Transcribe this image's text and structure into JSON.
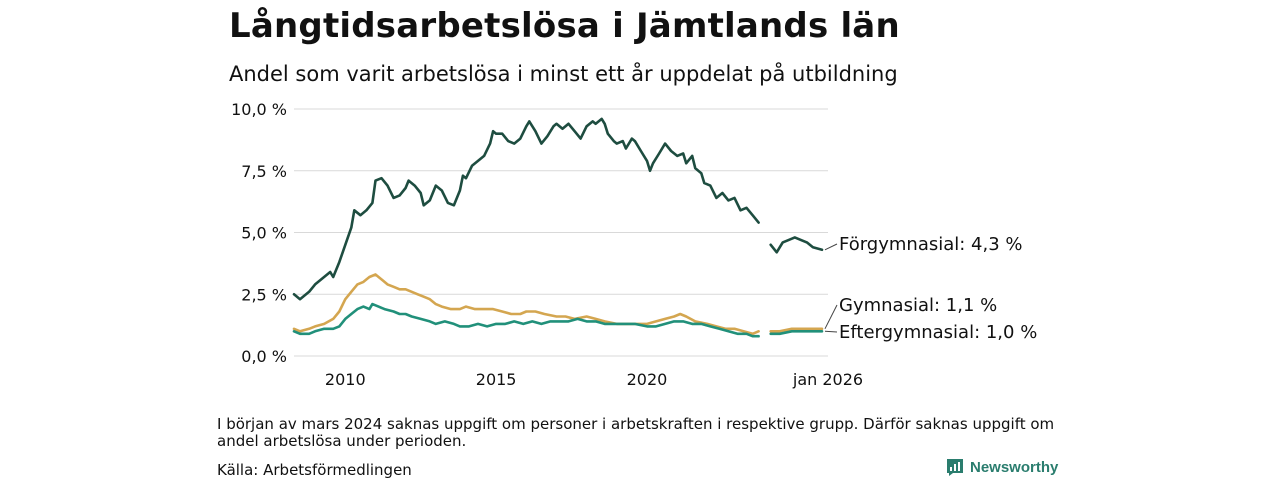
{
  "title": "Långtidsarbetslösa i Jämtlands län",
  "subtitle": "Andel som varit arbetslösa i minst ett år uppdelat på utbildning",
  "note": "I början av mars 2024 saknas uppgift om personer i arbetskraften i respektive grupp. Därför saknas uppgift om andel arbetslösa under perioden.",
  "source": "Källa: Arbetsförmedlingen",
  "brand": "Newsworthy",
  "colors": {
    "forgymnasial": "#1e4d40",
    "gymnasial": "#d4a650",
    "eftergymnasial": "#21907a",
    "grid": "#d9d9d9",
    "brand": "#2a7d6e"
  },
  "chart_data": {
    "type": "line",
    "x_range": [
      2008.3,
      2026.0
    ],
    "ylim": [
      0,
      10
    ],
    "y_ticks": [
      0,
      2.5,
      5,
      7.5,
      10
    ],
    "y_tick_labels": [
      "0,0 %",
      "2,5 %",
      "5,0 %",
      "7,5 %",
      "10,0 %"
    ],
    "x_ticks": [
      2010,
      2015,
      2020,
      2026
    ],
    "x_tick_labels": [
      "2010",
      "2015",
      "2020",
      "jan 2026"
    ],
    "grid": true,
    "gap": [
      2023.7,
      2024.1
    ],
    "series": [
      {
        "name": "Förgymnasial",
        "label": "Förgymnasial: 4,3 %",
        "color": "#1e4d40",
        "points": [
          [
            2008.3,
            2.5
          ],
          [
            2008.5,
            2.3
          ],
          [
            2008.8,
            2.6
          ],
          [
            2009.0,
            2.9
          ],
          [
            2009.2,
            3.1
          ],
          [
            2009.5,
            3.4
          ],
          [
            2009.6,
            3.2
          ],
          [
            2009.8,
            3.8
          ],
          [
            2010.0,
            4.5
          ],
          [
            2010.2,
            5.2
          ],
          [
            2010.3,
            5.9
          ],
          [
            2010.5,
            5.7
          ],
          [
            2010.7,
            5.9
          ],
          [
            2010.9,
            6.2
          ],
          [
            2011.0,
            7.1
          ],
          [
            2011.2,
            7.2
          ],
          [
            2011.4,
            6.9
          ],
          [
            2011.6,
            6.4
          ],
          [
            2011.8,
            6.5
          ],
          [
            2012.0,
            6.8
          ],
          [
            2012.1,
            7.1
          ],
          [
            2012.3,
            6.9
          ],
          [
            2012.5,
            6.6
          ],
          [
            2012.6,
            6.1
          ],
          [
            2012.8,
            6.3
          ],
          [
            2013.0,
            6.9
          ],
          [
            2013.2,
            6.7
          ],
          [
            2013.4,
            6.2
          ],
          [
            2013.6,
            6.1
          ],
          [
            2013.8,
            6.7
          ],
          [
            2013.9,
            7.3
          ],
          [
            2014.0,
            7.2
          ],
          [
            2014.2,
            7.7
          ],
          [
            2014.4,
            7.9
          ],
          [
            2014.6,
            8.1
          ],
          [
            2014.8,
            8.6
          ],
          [
            2014.9,
            9.1
          ],
          [
            2015.0,
            9.0
          ],
          [
            2015.2,
            9.0
          ],
          [
            2015.4,
            8.7
          ],
          [
            2015.6,
            8.6
          ],
          [
            2015.8,
            8.8
          ],
          [
            2016.0,
            9.3
          ],
          [
            2016.1,
            9.5
          ],
          [
            2016.3,
            9.1
          ],
          [
            2016.5,
            8.6
          ],
          [
            2016.7,
            8.9
          ],
          [
            2016.9,
            9.3
          ],
          [
            2017.0,
            9.4
          ],
          [
            2017.2,
            9.2
          ],
          [
            2017.4,
            9.4
          ],
          [
            2017.6,
            9.1
          ],
          [
            2017.8,
            8.8
          ],
          [
            2018.0,
            9.3
          ],
          [
            2018.2,
            9.5
          ],
          [
            2018.3,
            9.4
          ],
          [
            2018.5,
            9.6
          ],
          [
            2018.6,
            9.4
          ],
          [
            2018.7,
            9.0
          ],
          [
            2018.9,
            8.7
          ],
          [
            2019.0,
            8.6
          ],
          [
            2019.2,
            8.7
          ],
          [
            2019.3,
            8.4
          ],
          [
            2019.5,
            8.8
          ],
          [
            2019.6,
            8.7
          ],
          [
            2019.8,
            8.3
          ],
          [
            2020.0,
            7.9
          ],
          [
            2020.1,
            7.5
          ],
          [
            2020.2,
            7.8
          ],
          [
            2020.4,
            8.2
          ],
          [
            2020.6,
            8.6
          ],
          [
            2020.8,
            8.3
          ],
          [
            2021.0,
            8.1
          ],
          [
            2021.2,
            8.2
          ],
          [
            2021.3,
            7.8
          ],
          [
            2021.5,
            8.1
          ],
          [
            2021.6,
            7.6
          ],
          [
            2021.8,
            7.4
          ],
          [
            2021.9,
            7.0
          ],
          [
            2022.1,
            6.9
          ],
          [
            2022.3,
            6.4
          ],
          [
            2022.5,
            6.6
          ],
          [
            2022.7,
            6.3
          ],
          [
            2022.9,
            6.4
          ],
          [
            2023.1,
            5.9
          ],
          [
            2023.3,
            6.0
          ],
          [
            2023.5,
            5.7
          ],
          [
            2023.7,
            5.4
          ],
          [
            2024.1,
            4.5
          ],
          [
            2024.3,
            4.2
          ],
          [
            2024.5,
            4.6
          ],
          [
            2024.7,
            4.7
          ],
          [
            2024.9,
            4.8
          ],
          [
            2025.1,
            4.7
          ],
          [
            2025.3,
            4.6
          ],
          [
            2025.5,
            4.4
          ],
          [
            2025.8,
            4.3
          ]
        ]
      },
      {
        "name": "Gymnasial",
        "label": "Gymnasial: 1,1 %",
        "color": "#d4a650",
        "points": [
          [
            2008.3,
            1.1
          ],
          [
            2008.5,
            1.0
          ],
          [
            2008.8,
            1.1
          ],
          [
            2009.0,
            1.2
          ],
          [
            2009.3,
            1.3
          ],
          [
            2009.6,
            1.5
          ],
          [
            2009.8,
            1.8
          ],
          [
            2010.0,
            2.3
          ],
          [
            2010.2,
            2.6
          ],
          [
            2010.4,
            2.9
          ],
          [
            2010.6,
            3.0
          ],
          [
            2010.8,
            3.2
          ],
          [
            2011.0,
            3.3
          ],
          [
            2011.2,
            3.1
          ],
          [
            2011.4,
            2.9
          ],
          [
            2011.6,
            2.8
          ],
          [
            2011.8,
            2.7
          ],
          [
            2012.0,
            2.7
          ],
          [
            2012.2,
            2.6
          ],
          [
            2012.4,
            2.5
          ],
          [
            2012.6,
            2.4
          ],
          [
            2012.8,
            2.3
          ],
          [
            2013.0,
            2.1
          ],
          [
            2013.2,
            2.0
          ],
          [
            2013.5,
            1.9
          ],
          [
            2013.8,
            1.9
          ],
          [
            2014.0,
            2.0
          ],
          [
            2014.3,
            1.9
          ],
          [
            2014.6,
            1.9
          ],
          [
            2014.9,
            1.9
          ],
          [
            2015.2,
            1.8
          ],
          [
            2015.5,
            1.7
          ],
          [
            2015.8,
            1.7
          ],
          [
            2016.0,
            1.8
          ],
          [
            2016.3,
            1.8
          ],
          [
            2016.6,
            1.7
          ],
          [
            2017.0,
            1.6
          ],
          [
            2017.3,
            1.6
          ],
          [
            2017.6,
            1.5
          ],
          [
            2018.0,
            1.6
          ],
          [
            2018.3,
            1.5
          ],
          [
            2018.6,
            1.4
          ],
          [
            2019.0,
            1.3
          ],
          [
            2019.3,
            1.3
          ],
          [
            2019.6,
            1.3
          ],
          [
            2020.0,
            1.3
          ],
          [
            2020.3,
            1.4
          ],
          [
            2020.6,
            1.5
          ],
          [
            2020.9,
            1.6
          ],
          [
            2021.1,
            1.7
          ],
          [
            2021.3,
            1.6
          ],
          [
            2021.6,
            1.4
          ],
          [
            2022.0,
            1.3
          ],
          [
            2022.3,
            1.2
          ],
          [
            2022.6,
            1.1
          ],
          [
            2022.9,
            1.1
          ],
          [
            2023.2,
            1.0
          ],
          [
            2023.5,
            0.9
          ],
          [
            2023.7,
            1.0
          ],
          [
            2024.1,
            1.0
          ],
          [
            2024.4,
            1.0
          ],
          [
            2024.8,
            1.1
          ],
          [
            2025.1,
            1.1
          ],
          [
            2025.4,
            1.1
          ],
          [
            2025.8,
            1.1
          ]
        ]
      },
      {
        "name": "Eftergymnasial",
        "label": "Eftergymnasial: 1,0 %",
        "color": "#21907a",
        "points": [
          [
            2008.3,
            1.0
          ],
          [
            2008.5,
            0.9
          ],
          [
            2008.8,
            0.9
          ],
          [
            2009.0,
            1.0
          ],
          [
            2009.3,
            1.1
          ],
          [
            2009.6,
            1.1
          ],
          [
            2009.8,
            1.2
          ],
          [
            2010.0,
            1.5
          ],
          [
            2010.2,
            1.7
          ],
          [
            2010.4,
            1.9
          ],
          [
            2010.6,
            2.0
          ],
          [
            2010.8,
            1.9
          ],
          [
            2010.9,
            2.1
          ],
          [
            2011.1,
            2.0
          ],
          [
            2011.3,
            1.9
          ],
          [
            2011.6,
            1.8
          ],
          [
            2011.8,
            1.7
          ],
          [
            2012.0,
            1.7
          ],
          [
            2012.2,
            1.6
          ],
          [
            2012.5,
            1.5
          ],
          [
            2012.8,
            1.4
          ],
          [
            2013.0,
            1.3
          ],
          [
            2013.3,
            1.4
          ],
          [
            2013.6,
            1.3
          ],
          [
            2013.8,
            1.2
          ],
          [
            2014.1,
            1.2
          ],
          [
            2014.4,
            1.3
          ],
          [
            2014.7,
            1.2
          ],
          [
            2015.0,
            1.3
          ],
          [
            2015.3,
            1.3
          ],
          [
            2015.6,
            1.4
          ],
          [
            2015.9,
            1.3
          ],
          [
            2016.2,
            1.4
          ],
          [
            2016.5,
            1.3
          ],
          [
            2016.8,
            1.4
          ],
          [
            2017.1,
            1.4
          ],
          [
            2017.4,
            1.4
          ],
          [
            2017.7,
            1.5
          ],
          [
            2018.0,
            1.4
          ],
          [
            2018.3,
            1.4
          ],
          [
            2018.6,
            1.3
          ],
          [
            2019.0,
            1.3
          ],
          [
            2019.3,
            1.3
          ],
          [
            2019.6,
            1.3
          ],
          [
            2020.0,
            1.2
          ],
          [
            2020.3,
            1.2
          ],
          [
            2020.6,
            1.3
          ],
          [
            2020.9,
            1.4
          ],
          [
            2021.2,
            1.4
          ],
          [
            2021.5,
            1.3
          ],
          [
            2021.8,
            1.3
          ],
          [
            2022.1,
            1.2
          ],
          [
            2022.4,
            1.1
          ],
          [
            2022.7,
            1.0
          ],
          [
            2023.0,
            0.9
          ],
          [
            2023.3,
            0.9
          ],
          [
            2023.5,
            0.8
          ],
          [
            2023.7,
            0.8
          ],
          [
            2024.1,
            0.9
          ],
          [
            2024.4,
            0.9
          ],
          [
            2024.8,
            1.0
          ],
          [
            2025.1,
            1.0
          ],
          [
            2025.4,
            1.0
          ],
          [
            2025.8,
            1.0
          ]
        ]
      }
    ]
  }
}
